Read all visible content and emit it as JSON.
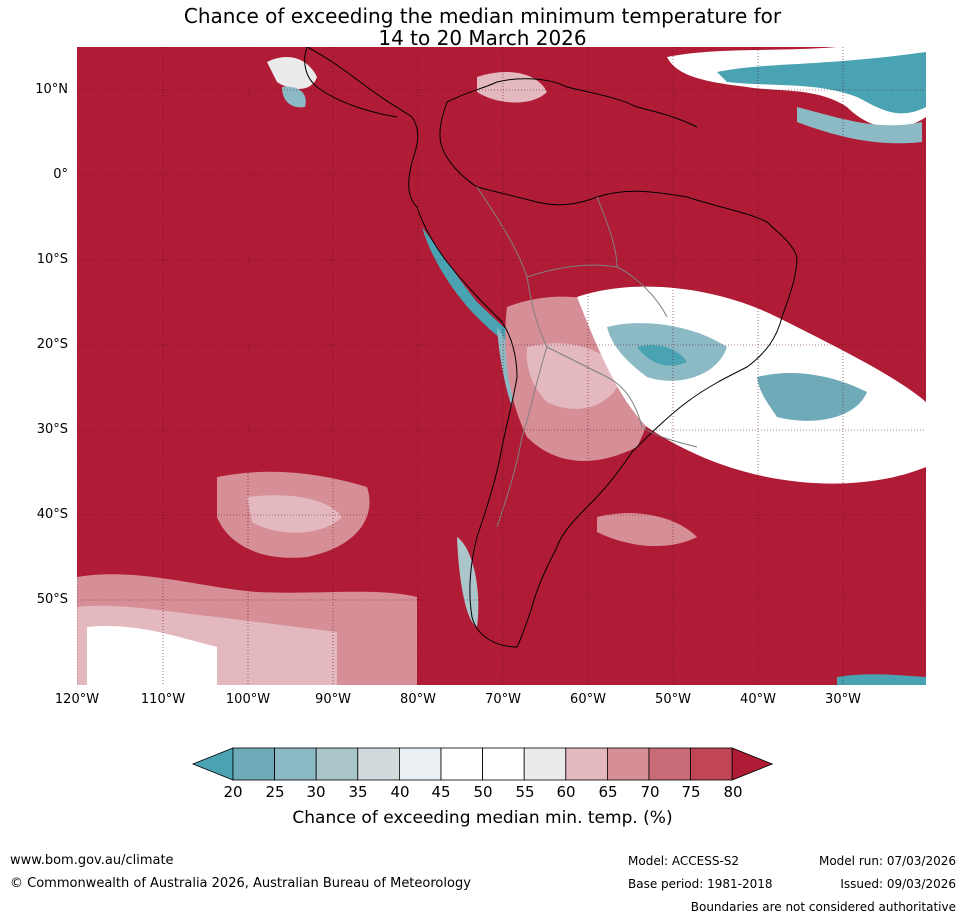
{
  "title": {
    "line1": "Chance of exceeding the median minimum temperature for",
    "line2": "14 to 20 March 2026"
  },
  "map": {
    "region": "South America",
    "background_color": "#b01c35",
    "lat_labels": [
      "10°N",
      "0°",
      "10°S",
      "20°S",
      "30°S",
      "40°S",
      "50°S"
    ],
    "lon_labels": [
      "120°W",
      "110°W",
      "100°W",
      "90°W",
      "80°W",
      "70°W",
      "60°W",
      "50°W",
      "40°W",
      "30°W"
    ]
  },
  "colorbar": {
    "label": "Chance of exceeding median min. temp. (%)",
    "ticks": [
      "20",
      "25",
      "30",
      "35",
      "40",
      "45",
      "50",
      "55",
      "60",
      "65",
      "70",
      "75",
      "80"
    ],
    "colors": [
      "#4aa3b3",
      "#6eaab8",
      "#8bbac5",
      "#abc6cb",
      "#d3dadd",
      "#eaf0f3",
      "#ffffff",
      "#ffffff",
      "#ebebeb",
      "#e3b8be",
      "#d68e97",
      "#c86b77",
      "#c04656",
      "#b01c35"
    ]
  },
  "footer": {
    "url": "www.bom.gov.au/climate",
    "copyright": "© Commonwealth of Australia 2026, Australian Bureau of Meteorology",
    "model": "Model: ACCESS-S2",
    "base_period": "Base period: 1981-2018",
    "model_run": "Model run: 07/03/2026",
    "issued": "Issued: 09/03/2026",
    "disclaimer": "Boundaries are not considered authoritative"
  }
}
